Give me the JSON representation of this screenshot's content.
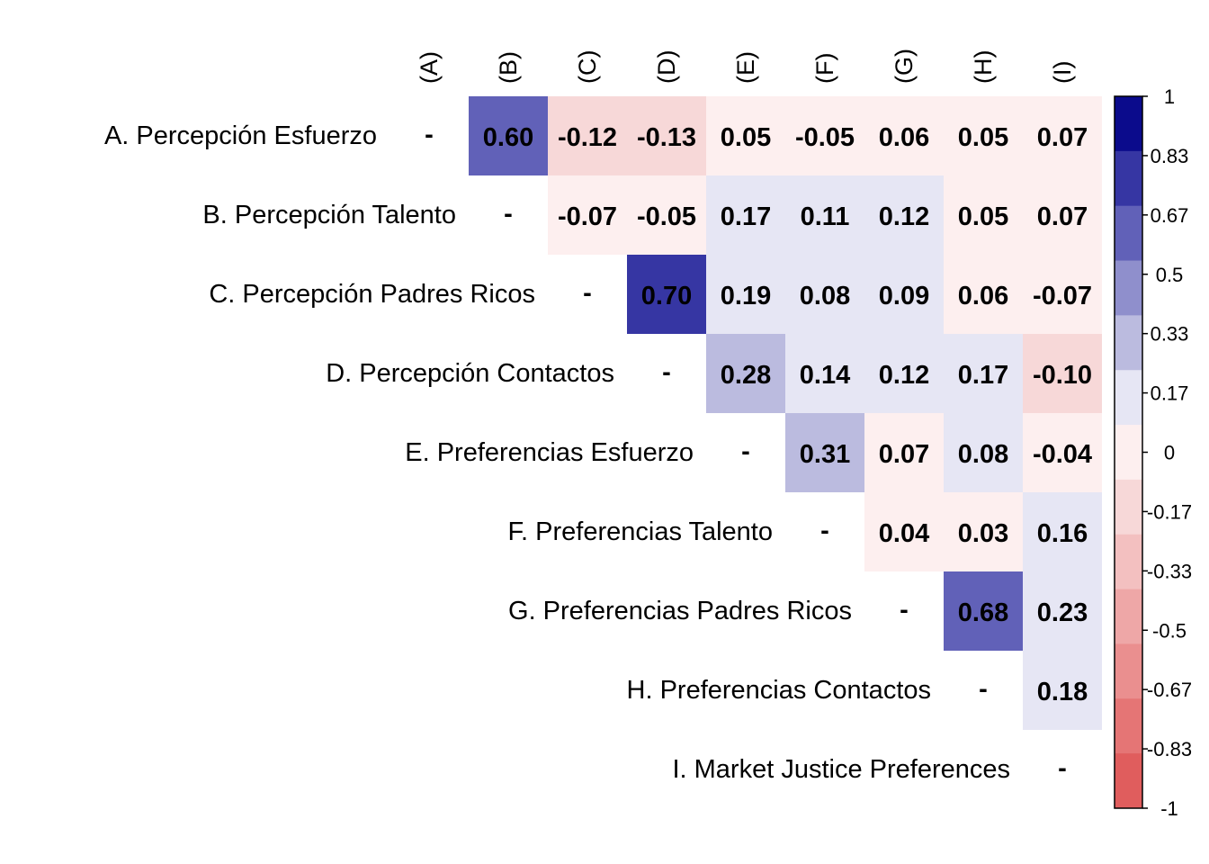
{
  "chart_data": {
    "type": "heatmap",
    "row_labels": [
      "A. Percepción Esfuerzo",
      "B. Percepción Talento",
      "C. Percepción Padres Ricos",
      "D. Percepción Contactos",
      "E. Preferencias Esfuerzo",
      "F. Preferencias Talento",
      "G. Preferencias Padres Ricos",
      "H. Preferencias Contactos",
      "I. Market Justice Preferences"
    ],
    "col_labels": [
      "(A)",
      "(B)",
      "(C)",
      "(D)",
      "(E)",
      "(F)",
      "(G)",
      "(H)",
      "(I)"
    ],
    "diagonal_text": "-",
    "matrix": [
      [
        null,
        0.6,
        -0.12,
        -0.13,
        0.05,
        -0.05,
        0.06,
        0.05,
        0.07
      ],
      [
        null,
        null,
        -0.07,
        -0.05,
        0.17,
        0.11,
        0.12,
        0.05,
        0.07
      ],
      [
        null,
        null,
        null,
        0.7,
        0.19,
        0.08,
        0.09,
        0.06,
        -0.07
      ],
      [
        null,
        null,
        null,
        null,
        0.28,
        0.14,
        0.12,
        0.17,
        -0.1
      ],
      [
        null,
        null,
        null,
        null,
        null,
        0.31,
        0.07,
        0.08,
        -0.04
      ],
      [
        null,
        null,
        null,
        null,
        null,
        null,
        0.04,
        0.03,
        0.16
      ],
      [
        null,
        null,
        null,
        null,
        null,
        null,
        null,
        0.68,
        0.23
      ],
      [
        null,
        null,
        null,
        null,
        null,
        null,
        null,
        null,
        0.18
      ],
      [
        null,
        null,
        null,
        null,
        null,
        null,
        null,
        null,
        null
      ]
    ],
    "value_labels": [
      [
        "",
        "0.60",
        "-0.12",
        "-0.13",
        "0.05",
        "-0.05",
        "0.06",
        "0.05",
        "0.07"
      ],
      [
        "",
        "",
        "-0.07",
        "-0.05",
        "0.17",
        "0.11",
        "0.12",
        "0.05",
        "0.07"
      ],
      [
        "",
        "",
        "",
        "0.70",
        "0.19",
        "0.08",
        "0.09",
        "0.06",
        "-0.07"
      ],
      [
        "",
        "",
        "",
        "",
        "0.28",
        "0.14",
        "0.12",
        "0.17",
        "-0.10"
      ],
      [
        "",
        "",
        "",
        "",
        "",
        "0.31",
        "0.07",
        "0.08",
        "-0.04"
      ],
      [
        "",
        "",
        "",
        "",
        "",
        "",
        "0.04",
        "0.03",
        "0.16"
      ],
      [
        "",
        "",
        "",
        "",
        "",
        "",
        "",
        "0.68",
        "0.23"
      ],
      [
        "",
        "",
        "",
        "",
        "",
        "",
        "",
        "",
        "0.18"
      ],
      [
        "",
        "",
        "",
        "",
        "",
        "",
        "",
        "",
        ""
      ]
    ],
    "color_scale": {
      "range": [
        -1,
        1
      ],
      "ticks": [
        "1",
        "0.83",
        "0.67",
        "0.5",
        "0.33",
        "0.17",
        "0",
        "-0.17",
        "-0.33",
        "-0.5",
        "-0.67",
        "-0.83",
        "-1"
      ],
      "bins_top_to_bottom": [
        "#0b0b8c",
        "#3636a3",
        "#6161b8",
        "#8f8fcc",
        "#bbbbdf",
        "#e6e6f4",
        "#fdefef",
        "#f7d8d8",
        "#f3c0c0",
        "#eea7a7",
        "#ea8f8f",
        "#e57575",
        "#e05d5d"
      ]
    },
    "legend_position": "right"
  }
}
